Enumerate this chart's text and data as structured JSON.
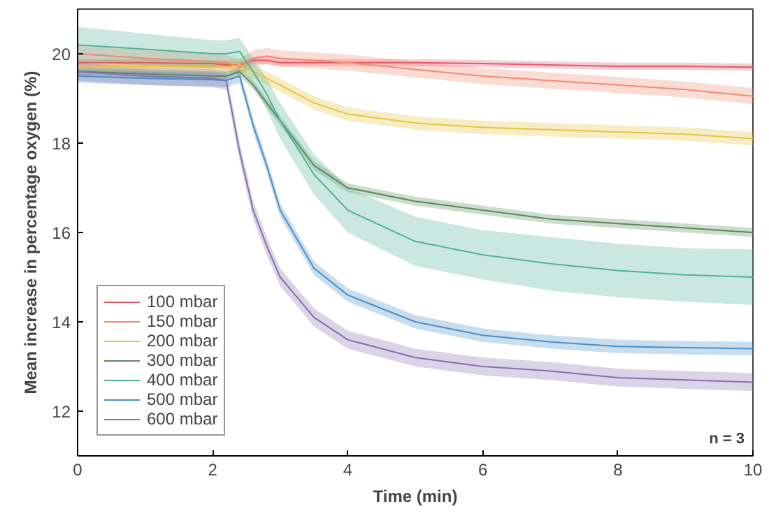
{
  "chart_data": {
    "type": "line",
    "xlabel": "Time (min)",
    "ylabel": "Mean increase in percentage oxygen (%)",
    "annotations": [
      "n = 3"
    ],
    "x": [
      0,
      1,
      2,
      2.2,
      2.4,
      2.6,
      2.8,
      3,
      3.5,
      4,
      5,
      6,
      7,
      8,
      9,
      10
    ],
    "xlim": [
      0,
      10
    ],
    "xticks": [
      0,
      2,
      4,
      6,
      8,
      10
    ],
    "ylim": [
      11,
      21
    ],
    "yticks": [
      12,
      14,
      16,
      18,
      20
    ],
    "grid": false,
    "legend": "bottom left",
    "marker": "none",
    "line_style": "solid",
    "series": [
      {
        "name": "100 mbar",
        "color": "#e05a6a",
        "values": [
          19.8,
          19.8,
          19.78,
          19.75,
          19.75,
          19.85,
          19.85,
          19.8,
          19.8,
          19.8,
          19.8,
          19.78,
          19.75,
          19.72,
          19.72,
          19.7
        ],
        "lower": [
          19.72,
          19.72,
          19.7,
          19.67,
          19.67,
          19.77,
          19.77,
          19.72,
          19.72,
          19.72,
          19.72,
          19.7,
          19.67,
          19.64,
          19.64,
          19.62
        ],
        "upper": [
          19.88,
          19.88,
          19.86,
          19.83,
          19.83,
          19.93,
          19.93,
          19.88,
          19.88,
          19.88,
          19.88,
          19.86,
          19.83,
          19.8,
          19.8,
          19.78
        ]
      },
      {
        "name": "150 mbar",
        "color": "#f08a72",
        "values": [
          20.0,
          19.9,
          19.82,
          19.8,
          19.7,
          19.9,
          19.95,
          19.9,
          19.85,
          19.8,
          19.65,
          19.5,
          19.4,
          19.3,
          19.2,
          19.05
        ],
        "lower": [
          19.82,
          19.72,
          19.64,
          19.62,
          19.52,
          19.72,
          19.77,
          19.72,
          19.67,
          19.62,
          19.47,
          19.32,
          19.22,
          19.12,
          19.02,
          18.87
        ],
        "upper": [
          20.18,
          20.08,
          20.0,
          19.98,
          19.88,
          20.08,
          20.13,
          20.08,
          20.03,
          19.98,
          19.83,
          19.68,
          19.58,
          19.48,
          19.38,
          19.23
        ]
      },
      {
        "name": "200 mbar",
        "color": "#e6c43c",
        "values": [
          19.7,
          19.72,
          19.7,
          19.7,
          19.75,
          19.6,
          19.45,
          19.3,
          18.9,
          18.65,
          18.45,
          18.35,
          18.3,
          18.25,
          18.2,
          18.1
        ],
        "lower": [
          19.55,
          19.57,
          19.55,
          19.55,
          19.6,
          19.45,
          19.3,
          19.15,
          18.75,
          18.5,
          18.3,
          18.2,
          18.15,
          18.1,
          18.05,
          17.95
        ],
        "upper": [
          19.85,
          19.87,
          19.85,
          19.85,
          19.9,
          19.75,
          19.6,
          19.45,
          19.05,
          18.8,
          18.6,
          18.5,
          18.45,
          18.4,
          18.35,
          18.25
        ]
      },
      {
        "name": "300 mbar",
        "color": "#5a8a5a",
        "values": [
          19.6,
          19.55,
          19.5,
          19.5,
          19.6,
          19.3,
          18.9,
          18.5,
          17.5,
          17.0,
          16.7,
          16.5,
          16.3,
          16.2,
          16.1,
          16.0
        ],
        "lower": [
          19.5,
          19.45,
          19.4,
          19.4,
          19.5,
          19.2,
          18.8,
          18.4,
          17.4,
          16.9,
          16.6,
          16.4,
          16.2,
          16.1,
          16.0,
          15.9
        ],
        "upper": [
          19.7,
          19.65,
          19.6,
          19.6,
          19.7,
          19.4,
          19.0,
          18.6,
          17.6,
          17.1,
          16.8,
          16.6,
          16.4,
          16.3,
          16.2,
          16.1
        ]
      },
      {
        "name": "400 mbar",
        "color": "#4fb494",
        "values": [
          20.2,
          20.1,
          20.0,
          20.0,
          20.05,
          19.6,
          19.1,
          18.5,
          17.3,
          16.5,
          15.8,
          15.5,
          15.3,
          15.15,
          15.05,
          15.0
        ],
        "lower": [
          19.8,
          19.75,
          19.7,
          19.7,
          19.75,
          19.3,
          18.75,
          18.1,
          16.85,
          16.0,
          15.25,
          14.95,
          14.7,
          14.55,
          14.45,
          14.38
        ],
        "upper": [
          20.6,
          20.45,
          20.3,
          20.3,
          20.35,
          19.9,
          19.45,
          18.9,
          17.75,
          17.0,
          16.35,
          16.05,
          15.9,
          15.75,
          15.65,
          15.62
        ]
      },
      {
        "name": "500 mbar",
        "color": "#4a8fc8",
        "values": [
          19.5,
          19.45,
          19.42,
          19.4,
          19.5,
          18.4,
          17.5,
          16.5,
          15.2,
          14.6,
          14.0,
          13.7,
          13.55,
          13.45,
          13.42,
          13.4
        ],
        "lower": [
          19.35,
          19.3,
          19.27,
          19.25,
          19.35,
          18.25,
          17.35,
          16.35,
          15.05,
          14.45,
          13.85,
          13.55,
          13.4,
          13.3,
          13.27,
          13.25
        ],
        "upper": [
          19.65,
          19.6,
          19.57,
          19.55,
          19.65,
          18.55,
          17.65,
          16.65,
          15.35,
          14.75,
          14.15,
          13.85,
          13.7,
          13.6,
          13.57,
          13.55
        ]
      },
      {
        "name": "600 mbar",
        "color": "#8670b0",
        "values": [
          19.6,
          19.5,
          19.45,
          19.4,
          17.8,
          16.5,
          15.7,
          15.0,
          14.1,
          13.6,
          13.2,
          13.0,
          12.9,
          12.75,
          12.7,
          12.65
        ],
        "lower": [
          19.4,
          19.3,
          19.25,
          19.2,
          17.6,
          16.3,
          15.5,
          14.8,
          13.9,
          13.4,
          13.0,
          12.8,
          12.7,
          12.55,
          12.5,
          12.45
        ],
        "upper": [
          19.8,
          19.7,
          19.65,
          19.6,
          18.0,
          16.7,
          15.9,
          15.2,
          14.3,
          13.8,
          13.4,
          13.2,
          13.1,
          12.95,
          12.9,
          12.85
        ]
      }
    ]
  }
}
